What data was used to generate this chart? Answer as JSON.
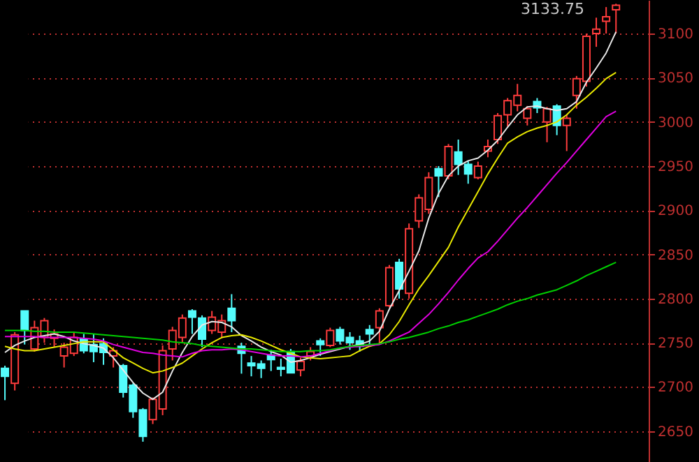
{
  "chart_data": {
    "type": "candlestick",
    "categories": [
      null,
      null,
      null,
      null,
      null,
      null,
      null,
      null,
      null,
      null,
      null,
      null,
      null,
      null,
      null,
      null,
      null,
      null,
      null,
      null,
      null,
      null,
      null,
      null,
      null,
      null,
      null,
      null,
      null,
      null,
      null,
      null,
      null,
      null,
      null,
      null,
      null,
      null,
      null,
      null,
      null,
      null,
      null,
      null,
      null,
      null,
      null,
      null,
      null,
      null,
      null,
      null,
      null,
      null,
      null,
      null,
      null,
      null,
      null,
      null,
      null,
      null,
      null
    ],
    "ohlc": [
      [
        2721,
        2724,
        2685,
        2712
      ],
      [
        2704,
        2762,
        2696,
        2759
      ],
      [
        2786,
        2786,
        2748,
        2764
      ],
      [
        2743,
        2775,
        2740,
        2767
      ],
      [
        2756,
        2778,
        2750,
        2775
      ],
      [
        2755,
        2765,
        2745,
        2760
      ],
      [
        2735,
        2750,
        2722,
        2745
      ],
      [
        2738,
        2762,
        2735,
        2756
      ],
      [
        2754,
        2760,
        2738,
        2741
      ],
      [
        2748,
        2760,
        2728,
        2740
      ],
      [
        2749,
        2755,
        2725,
        2739
      ],
      [
        2735,
        2745,
        2722,
        2741
      ],
      [
        2724,
        2726,
        2688,
        2694
      ],
      [
        2702,
        2704,
        2665,
        2672
      ],
      [
        2674,
        2676,
        2638,
        2644
      ],
      [
        2663,
        2688,
        2658,
        2686
      ],
      [
        2675,
        2747,
        2668,
        2741
      ],
      [
        2743,
        2768,
        2730,
        2764
      ],
      [
        2756,
        2782,
        2750,
        2778
      ],
      [
        2786,
        2788,
        2760,
        2779
      ],
      [
        2778,
        2781,
        2745,
        2754
      ],
      [
        2764,
        2786,
        2760,
        2779
      ],
      [
        2762,
        2782,
        2755,
        2775
      ],
      [
        2789,
        2805,
        2762,
        2775
      ],
      [
        2746,
        2750,
        2715,
        2738
      ],
      [
        2727,
        2735,
        2712,
        2724
      ],
      [
        2726,
        2730,
        2710,
        2721
      ],
      [
        2736,
        2742,
        2718,
        2731
      ],
      [
        2722,
        2732,
        2712,
        2720
      ],
      [
        2740,
        2743,
        2716,
        2716
      ],
      [
        2719,
        2733,
        2712,
        2729
      ],
      [
        2735,
        2745,
        2730,
        2740
      ],
      [
        2752,
        2755,
        2735,
        2748
      ],
      [
        2747,
        2767,
        2745,
        2764
      ],
      [
        2765,
        2768,
        2748,
        2752
      ],
      [
        2756,
        2762,
        2742,
        2750
      ],
      [
        2752,
        2758,
        2740,
        2746
      ],
      [
        2765,
        2770,
        2748,
        2760
      ],
      [
        2767,
        2789,
        2748,
        2786
      ],
      [
        2792,
        2838,
        2790,
        2835
      ],
      [
        2841,
        2845,
        2800,
        2811
      ],
      [
        2806,
        2885,
        2800,
        2879
      ],
      [
        2888,
        2918,
        2880,
        2914
      ],
      [
        2901,
        2943,
        2896,
        2937
      ],
      [
        2947,
        2950,
        2915,
        2939
      ],
      [
        2939,
        2975,
        2935,
        2972
      ],
      [
        2966,
        2980,
        2940,
        2952
      ],
      [
        2952,
        2956,
        2930,
        2941
      ],
      [
        2937,
        2955,
        2935,
        2950
      ],
      [
        2967,
        2980,
        2960,
        2972
      ],
      [
        2980,
        3010,
        2975,
        3007
      ],
      [
        3008,
        3027,
        2995,
        3024
      ],
      [
        3019,
        3043,
        3012,
        3030
      ],
      [
        3004,
        3018,
        2996,
        3015
      ],
      [
        3023,
        3027,
        3010,
        3016
      ],
      [
        3000,
        3017,
        2977,
        3015
      ],
      [
        3018,
        3020,
        2985,
        2996
      ],
      [
        2996,
        3008,
        2967,
        3004
      ],
      [
        3030,
        3052,
        3015,
        3049
      ],
      [
        3046,
        3100,
        3040,
        3097
      ],
      [
        3100,
        3118,
        3085,
        3105
      ],
      [
        3114,
        3130,
        3100,
        3119
      ],
      [
        3127,
        3133.75,
        3100,
        3132
      ]
    ],
    "colors": [
      "#54fcfc",
      "#ff3c3c",
      "#54fcfc",
      "#ff3c3c",
      "#ff3c3c",
      "#ff3c3c",
      "#ff3c3c",
      "#ff3c3c",
      "#54fcfc",
      "#54fcfc",
      "#54fcfc",
      "#ff3c3c",
      "#54fcfc",
      "#54fcfc",
      "#54fcfc",
      "#ff3c3c",
      "#ff3c3c",
      "#ff3c3c",
      "#ff3c3c",
      "#54fcfc",
      "#54fcfc",
      "#ff3c3c",
      "#ff3c3c",
      "#54fcfc",
      "#54fcfc",
      "#54fcfc",
      "#54fcfc",
      "#54fcfc",
      "#54fcfc",
      "#54fcfc",
      "#ff3c3c",
      "#ff3c3c",
      "#54fcfc",
      "#ff3c3c",
      "#54fcfc",
      "#54fcfc",
      "#54fcfc",
      "#54fcfc",
      "#ff3c3c",
      "#ff3c3c",
      "#54fcfc",
      "#ff3c3c",
      "#ff3c3c",
      "#ff3c3c",
      "#54fcfc",
      "#ff3c3c",
      "#54fcfc",
      "#54fcfc",
      "#ff3c3c",
      "#ff3c3c",
      "#ff3c3c",
      "#ff3c3c",
      "#ff3c3c",
      "#ff3c3c",
      "#54fcfc",
      "#ff3c3c",
      "#54fcfc",
      "#ff3c3c",
      "#ff3c3c",
      "#ff3c3c",
      "#ff3c3c",
      "#ff3c3c",
      "#ff3c3c"
    ],
    "series": [
      {
        "type": "line",
        "color": "#e8e8e8",
        "values": [
          2739,
          2747,
          2752,
          2756,
          2758,
          2760,
          2757,
          2752,
          2749,
          2747,
          2744,
          2733,
          2719,
          2705,
          2693,
          2686,
          2694,
          2718,
          2739,
          2757,
          2770,
          2774,
          2773,
          2768,
          2758,
          2752,
          2745,
          2740,
          2736,
          2728,
          2730,
          2733,
          2737,
          2740,
          2743,
          2746,
          2748,
          2752,
          2763,
          2788,
          2809,
          2831,
          2854,
          2891,
          2919,
          2939,
          2950,
          2956,
          2959,
          2968,
          2979,
          2994,
          3008,
          3017,
          3018,
          3015,
          3013,
          3015,
          3023,
          3045,
          3061,
          3078,
          3102
        ]
      },
      {
        "type": "line",
        "color": "#e8e800",
        "values": [
          2746,
          2743,
          2741,
          2741,
          2743,
          2745,
          2747,
          2749,
          2751,
          2751,
          2751,
          2742,
          2733,
          2727,
          2721,
          2716,
          2718,
          2722,
          2727,
          2735,
          2743,
          2750,
          2756,
          2758,
          2759,
          2756,
          2752,
          2747,
          2742,
          2738,
          2734,
          2733,
          2732,
          2733,
          2734,
          2735,
          2741,
          2746,
          2749,
          2759,
          2774,
          2793,
          2811,
          2826,
          2842,
          2858,
          2881,
          2901,
          2921,
          2941,
          2959,
          2976,
          2983,
          2989,
          2993,
          2996,
          3000,
          3008,
          3019,
          3028,
          3038,
          3049,
          3056
        ]
      },
      {
        "type": "line",
        "color": "#e000e0",
        "values": [
          2757,
          2757,
          2757,
          2757,
          2756,
          2756,
          2756,
          2756,
          2755,
          2754,
          2752,
          2748,
          2745,
          2742,
          2739,
          2738,
          2736,
          2735,
          2734,
          2738,
          2741,
          2742,
          2742,
          2743,
          2742,
          2740,
          2738,
          2736,
          2735,
          2735,
          2734,
          2735,
          2738,
          2741,
          2744,
          2745,
          2746,
          2747,
          2748,
          2752,
          2757,
          2762,
          2772,
          2782,
          2794,
          2807,
          2821,
          2834,
          2846,
          2853,
          2865,
          2878,
          2891,
          2903,
          2916,
          2929,
          2942,
          2954,
          2967,
          2980,
          2993,
          3006,
          3012
        ]
      },
      {
        "type": "line",
        "color": "#00d000",
        "values": [
          2764,
          2764,
          2764,
          2763,
          2763,
          2762,
          2762,
          2762,
          2761,
          2760,
          2759,
          2758,
          2757,
          2756,
          2755,
          2754,
          2753,
          2751,
          2750,
          2749,
          2747,
          2746,
          2745,
          2744,
          2743,
          2743,
          2742,
          2741,
          2740,
          2740,
          2740,
          2741,
          2741,
          2742,
          2744,
          2746,
          2747,
          2748,
          2749,
          2751,
          2754,
          2756,
          2759,
          2762,
          2766,
          2769,
          2773,
          2776,
          2780,
          2784,
          2788,
          2793,
          2797,
          2800,
          2804,
          2807,
          2810,
          2815,
          2820,
          2826,
          2831,
          2836,
          2841
        ]
      }
    ],
    "annotations": [
      "3133.75"
    ],
    "ylim": [
      2615,
      3138
    ],
    "yticks": [
      2650,
      2700,
      2750,
      2800,
      2850,
      2900,
      2950,
      3000,
      3050,
      3100
    ],
    "grid": "y",
    "tick_labels": "y"
  }
}
